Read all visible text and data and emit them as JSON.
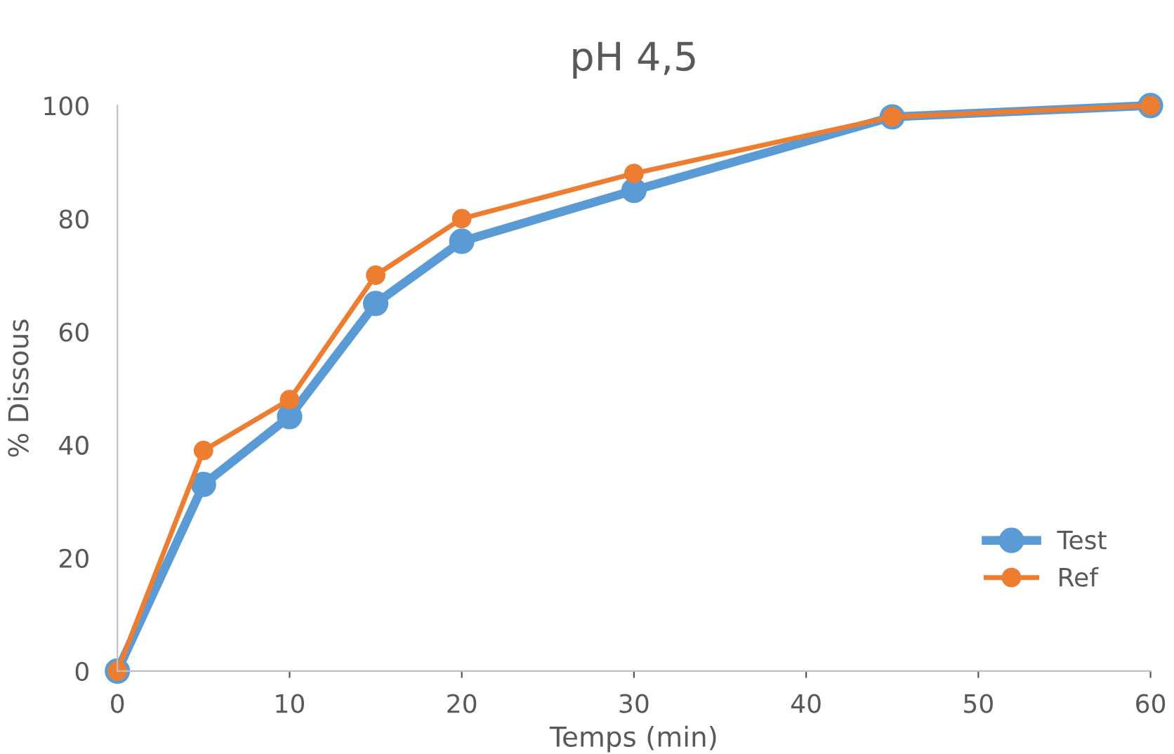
{
  "chart_data": {
    "type": "line",
    "title": "pH 4,5",
    "xlabel": "Temps (min)",
    "ylabel": "% Dissous",
    "x": [
      0,
      5,
      10,
      15,
      20,
      30,
      45,
      60
    ],
    "series": [
      {
        "name": "Test",
        "color": "#5b9bd5",
        "values": [
          0,
          33,
          45,
          65,
          76,
          85,
          98,
          100
        ]
      },
      {
        "name": "Ref",
        "color": "#ed7d31",
        "values": [
          0,
          39,
          48,
          70,
          80,
          88,
          98,
          100
        ]
      }
    ],
    "xlim": [
      0,
      60
    ],
    "xticks": [
      0,
      10,
      20,
      30,
      40,
      50,
      60
    ],
    "ylim": [
      0,
      100
    ],
    "yticks": [
      0,
      20,
      40,
      60,
      80,
      100
    ],
    "grid": false,
    "legend": "bottom right",
    "marker": "circle",
    "line_style": "solid"
  }
}
